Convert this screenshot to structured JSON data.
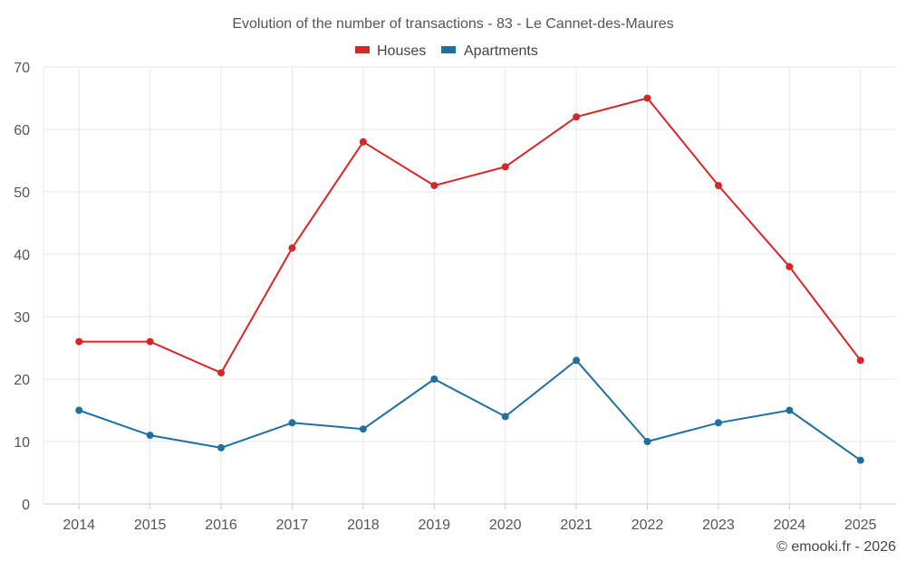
{
  "chart_data": {
    "type": "line",
    "title": "Evolution of the number of transactions - 83 - Le Cannet-des-Maures",
    "xlabel": "",
    "ylabel": "",
    "categories": [
      "2014",
      "2015",
      "2016",
      "2017",
      "2018",
      "2019",
      "2020",
      "2021",
      "2022",
      "2023",
      "2024",
      "2025"
    ],
    "ylim": [
      0,
      70
    ],
    "yticks": [
      0,
      10,
      20,
      30,
      40,
      50,
      60,
      70
    ],
    "grid": true,
    "legend_position": "top-center",
    "series": [
      {
        "name": "Houses",
        "color": "#d62728",
        "values": [
          26,
          26,
          21,
          41,
          58,
          51,
          54,
          62,
          65,
          51,
          38,
          23
        ]
      },
      {
        "name": "Apartments",
        "color": "#1f6fa0",
        "values": [
          15,
          11,
          9,
          13,
          12,
          20,
          14,
          23,
          10,
          13,
          15,
          7
        ]
      }
    ]
  },
  "credit": "© emooki.fr - 2026"
}
